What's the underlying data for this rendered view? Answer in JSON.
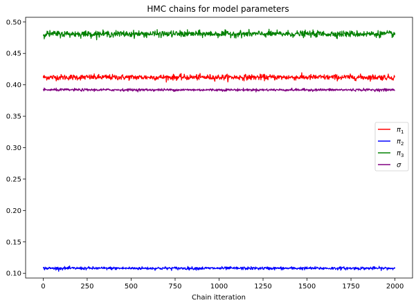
{
  "chart_data": {
    "type": "line",
    "title": "HMC chains for model parameters",
    "xlabel": "Chain itteration",
    "ylabel": "",
    "xlim": [
      -100,
      2100
    ],
    "ylim": [
      0.0925,
      0.5075
    ],
    "xticks": [
      0,
      250,
      500,
      750,
      1000,
      1250,
      1500,
      1750,
      2000
    ],
    "xtick_labels": [
      "0",
      "250",
      "500",
      "750",
      "1000",
      "1250",
      "1500",
      "1750",
      "2000"
    ],
    "yticks": [
      0.1,
      0.15,
      0.2,
      0.25,
      0.3,
      0.35,
      0.4,
      0.45,
      0.5
    ],
    "ytick_labels": [
      "0.10",
      "0.15",
      "0.20",
      "0.25",
      "0.30",
      "0.35",
      "0.40",
      "0.45",
      "0.50"
    ],
    "grid": false,
    "legend_position": "center-right",
    "iterations": [
      0,
      2000
    ],
    "series": [
      {
        "name": "π₁",
        "legend_symbol": "π",
        "legend_sub": "1",
        "color": "#ff0000",
        "mean": 0.412,
        "noise": 0.0022
      },
      {
        "name": "π₂",
        "legend_symbol": "π",
        "legend_sub": "2",
        "color": "#0000ff",
        "mean": 0.108,
        "noise": 0.0012
      },
      {
        "name": "π₃",
        "legend_symbol": "π",
        "legend_sub": "3",
        "color": "#008000",
        "mean": 0.481,
        "noise": 0.0025
      },
      {
        "name": "σ",
        "legend_symbol": "σ",
        "legend_sub": "",
        "color": "#800080",
        "mean": 0.392,
        "noise": 0.001
      }
    ]
  }
}
